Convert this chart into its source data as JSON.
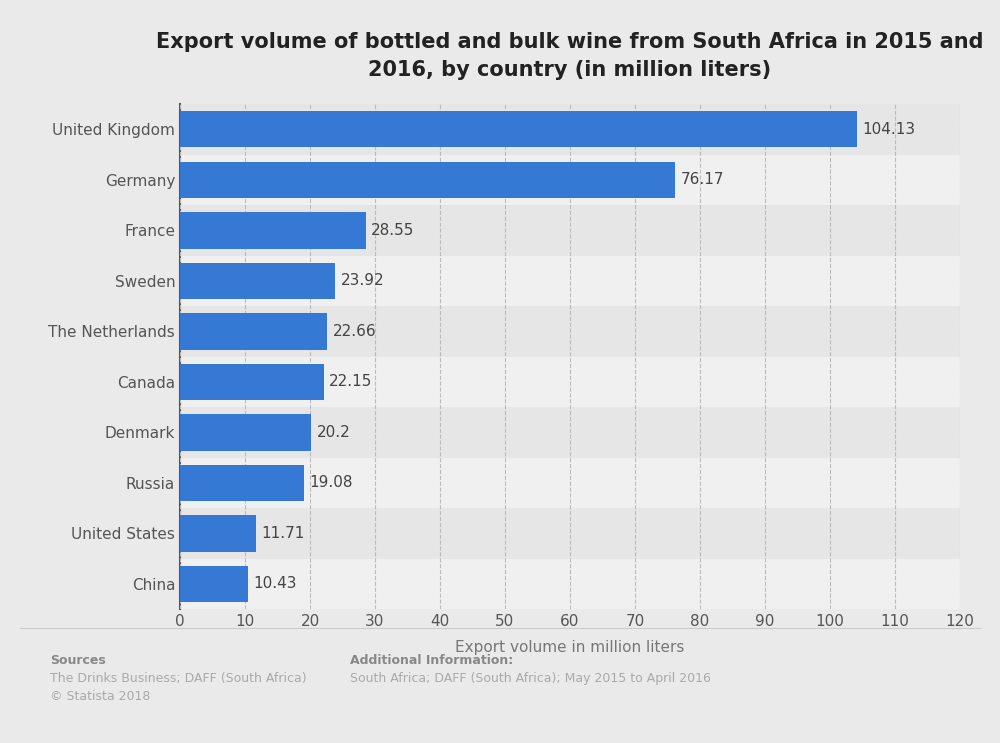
{
  "title": "Export volume of bottled and bulk wine from South Africa in 2015 and\n2016, by country (in million liters)",
  "countries": [
    "China",
    "United States",
    "Russia",
    "Denmark",
    "Canada",
    "The Netherlands",
    "Sweden",
    "France",
    "Germany",
    "United Kingdom"
  ],
  "values": [
    10.43,
    11.71,
    19.08,
    20.2,
    22.15,
    22.66,
    23.92,
    28.55,
    76.17,
    104.13
  ],
  "bar_color": "#3579D4",
  "background_color": "#EAEAEA",
  "plot_bg_color_light": "#F0F0F0",
  "plot_bg_color_dark": "#E6E6E6",
  "xlabel": "Export volume in million liters",
  "xlim": [
    0,
    120
  ],
  "xticks": [
    0,
    10,
    20,
    30,
    40,
    50,
    60,
    70,
    80,
    90,
    100,
    110,
    120
  ],
  "title_fontsize": 15,
  "label_fontsize": 11,
  "tick_fontsize": 11,
  "value_fontsize": 11,
  "sources_bold": "Sources",
  "sources_normal": "The Drinks Business; DAFF (South Africa)\n© Statista 2018",
  "additional_bold": "Additional Information:",
  "additional_normal": "South Africa; DAFF (South Africa); May 2015 to April 2016",
  "bar_height": 0.72
}
